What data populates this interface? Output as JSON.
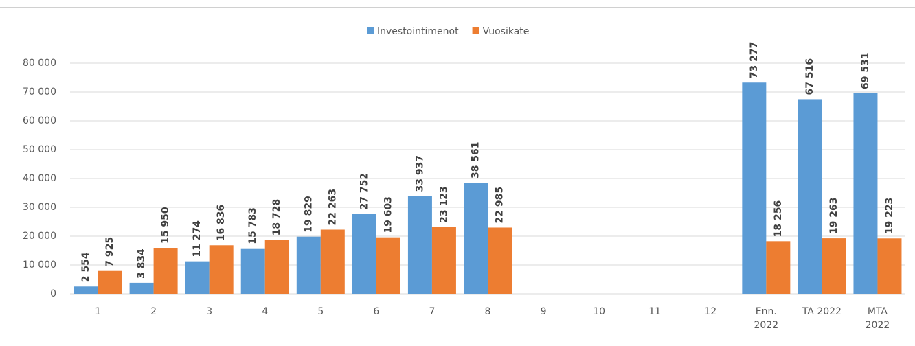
{
  "chart_data": {
    "type": "bar",
    "categories": [
      "1",
      "2",
      "3",
      "4",
      "5",
      "6",
      "7",
      "8",
      "9",
      "10",
      "11",
      "12",
      "Enn.\n2022",
      "TA 2022",
      "MTA\n2022"
    ],
    "series": [
      {
        "name": "Investointimenot",
        "color": "#5b9bd5",
        "values": [
          2554,
          3834,
          11274,
          15783,
          19829,
          27752,
          33937,
          38561,
          null,
          null,
          null,
          null,
          73277,
          67516,
          69531
        ],
        "value_labels": [
          "2 554",
          "3 834",
          "11 274",
          "15 783",
          "19 829",
          "27 752",
          "33 937",
          "38 561",
          null,
          null,
          null,
          null,
          "73 277",
          "67 516",
          "69 531"
        ]
      },
      {
        "name": "Vuosikate",
        "color": "#ed7d31",
        "values": [
          7925,
          15950,
          16836,
          18728,
          22263,
          19603,
          23123,
          22985,
          null,
          null,
          null,
          null,
          18256,
          19263,
          19223
        ],
        "value_labels": [
          "7 925",
          "15 950",
          "16 836",
          "18 728",
          "22 263",
          "19 603",
          "23 123",
          "22 985",
          null,
          null,
          null,
          null,
          "18 256",
          "19 263",
          "19 223"
        ]
      }
    ],
    "ylim": [
      0,
      80000
    ],
    "yticks": [
      0,
      {
        "value": 10000,
        "label": "10 000"
      },
      {
        "value": 20000,
        "label": "20 000"
      },
      {
        "value": 30000,
        "label": "30 000"
      },
      {
        "value": 40000,
        "label": "40 000"
      },
      {
        "value": 50000,
        "label": "50 000"
      },
      {
        "value": 60000,
        "label": "60 000"
      },
      {
        "value": 70000,
        "label": "70 000"
      },
      {
        "value": 80000,
        "label": "80 000"
      }
    ],
    "grid": true,
    "legend": "top"
  }
}
